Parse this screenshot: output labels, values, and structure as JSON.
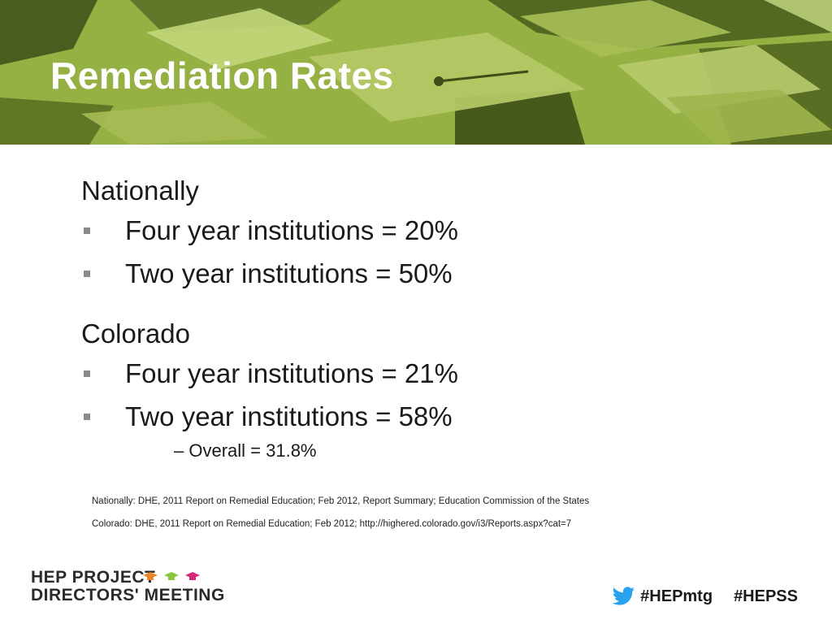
{
  "title": "Remediation Rates",
  "sections": [
    {
      "heading": "Nationally",
      "bullets": [
        "Four year institutions = 20%",
        "Two year institutions = 50%"
      ]
    },
    {
      "heading": "Colorado",
      "bullets": [
        "Four year institutions = 21%",
        "Two year institutions = 58%"
      ],
      "sub_bullet": "– Overall = 31.8%"
    }
  ],
  "sources": [
    "Nationally: DHE, 2011 Report on Remedial Education; Feb 2012, Report Summary; Education Commission of the States",
    "Colorado: DHE, 2011 Report on Remedial Education; Feb 2012; http://highered.colorado.gov/i3/Reports.aspx?cat=7"
  ],
  "footer": {
    "logo_line1": "HEP PROJECT",
    "logo_line2": "DIRECTORS' MEETING",
    "logo_icon": "graduation-cap-icon",
    "hashtag1": "#HEPmtg",
    "hashtag2": "#HEPSS",
    "social_icon": "twitter-bird-icon"
  },
  "colors": {
    "banner_green": "#95b043",
    "cap_orange": "#e8872a",
    "cap_green": "#8cc63f",
    "cap_magenta": "#d6287a",
    "twitter_blue": "#2aa3ef"
  }
}
